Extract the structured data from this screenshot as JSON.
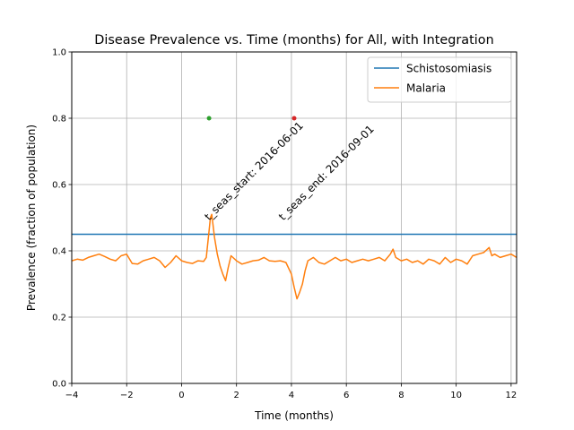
{
  "chart_data": {
    "type": "line",
    "title": "Disease Prevalence vs. Time (months) for All, with Integration",
    "xlabel": "Time (months)",
    "ylabel": "Prevalence (fraction of population)",
    "xlim": [
      -4,
      12.2
    ],
    "ylim": [
      0.0,
      1.0
    ],
    "xticks": [
      -4,
      -2,
      0,
      2,
      4,
      6,
      8,
      10,
      12
    ],
    "xtick_labels": [
      "−4",
      "−2",
      "0",
      "2",
      "4",
      "6",
      "8",
      "10",
      "12"
    ],
    "yticks": [
      0.0,
      0.2,
      0.4,
      0.6,
      0.8,
      1.0
    ],
    "ytick_labels": [
      "0.0",
      "0.2",
      "0.4",
      "0.6",
      "0.8",
      "1.0"
    ],
    "grid": true,
    "legend_position": "top-right",
    "series": [
      {
        "name": "Schistosomiasis",
        "color": "#1f77b4",
        "x": [
          -4,
          12.2
        ],
        "y": [
          0.45,
          0.45
        ]
      },
      {
        "name": "Malaria",
        "color": "#ff7f0e",
        "x": [
          -4.0,
          -3.8,
          -3.6,
          -3.4,
          -3.2,
          -3.0,
          -2.8,
          -2.6,
          -2.4,
          -2.2,
          -2.0,
          -1.8,
          -1.6,
          -1.4,
          -1.2,
          -1.0,
          -0.8,
          -0.6,
          -0.4,
          -0.2,
          0.0,
          0.2,
          0.4,
          0.6,
          0.8,
          0.9,
          1.0,
          1.05,
          1.1,
          1.2,
          1.3,
          1.4,
          1.5,
          1.6,
          1.7,
          1.8,
          2.0,
          2.2,
          2.4,
          2.6,
          2.8,
          3.0,
          3.2,
          3.4,
          3.6,
          3.8,
          4.0,
          4.1,
          4.2,
          4.3,
          4.4,
          4.5,
          4.6,
          4.8,
          5.0,
          5.2,
          5.4,
          5.6,
          5.8,
          6.0,
          6.2,
          6.4,
          6.6,
          6.8,
          7.0,
          7.2,
          7.4,
          7.6,
          7.7,
          7.8,
          8.0,
          8.2,
          8.4,
          8.6,
          8.8,
          9.0,
          9.2,
          9.4,
          9.6,
          9.8,
          10.0,
          10.2,
          10.4,
          10.6,
          10.8,
          11.0,
          11.2,
          11.3,
          11.4,
          11.6,
          11.8,
          12.0,
          12.2
        ],
        "y": [
          0.37,
          0.375,
          0.372,
          0.38,
          0.385,
          0.39,
          0.383,
          0.375,
          0.37,
          0.385,
          0.39,
          0.362,
          0.36,
          0.37,
          0.375,
          0.38,
          0.37,
          0.35,
          0.365,
          0.385,
          0.37,
          0.365,
          0.362,
          0.37,
          0.368,
          0.38,
          0.46,
          0.5,
          0.51,
          0.44,
          0.39,
          0.355,
          0.33,
          0.31,
          0.35,
          0.385,
          0.37,
          0.36,
          0.365,
          0.37,
          0.372,
          0.38,
          0.37,
          0.368,
          0.37,
          0.365,
          0.33,
          0.29,
          0.255,
          0.275,
          0.3,
          0.34,
          0.37,
          0.38,
          0.365,
          0.36,
          0.37,
          0.38,
          0.37,
          0.375,
          0.365,
          0.37,
          0.375,
          0.37,
          0.375,
          0.38,
          0.37,
          0.39,
          0.405,
          0.38,
          0.37,
          0.375,
          0.365,
          0.37,
          0.36,
          0.375,
          0.37,
          0.36,
          0.38,
          0.365,
          0.375,
          0.37,
          0.36,
          0.385,
          0.39,
          0.395,
          0.41,
          0.385,
          0.39,
          0.38,
          0.385,
          0.39,
          0.38
        ]
      }
    ],
    "markers": [
      {
        "x": 1.0,
        "y": 0.8,
        "color": "#2ca02c"
      },
      {
        "x": 4.1,
        "y": 0.8,
        "color": "#d62728"
      }
    ],
    "annotations": [
      {
        "text": "t_seas_start: 2016-06-01",
        "x": 1.0,
        "y": 0.49,
        "rotation": -45
      },
      {
        "text": "t_seas_end: 2016-09-01",
        "x": 3.7,
        "y": 0.49,
        "rotation": -45
      }
    ]
  }
}
